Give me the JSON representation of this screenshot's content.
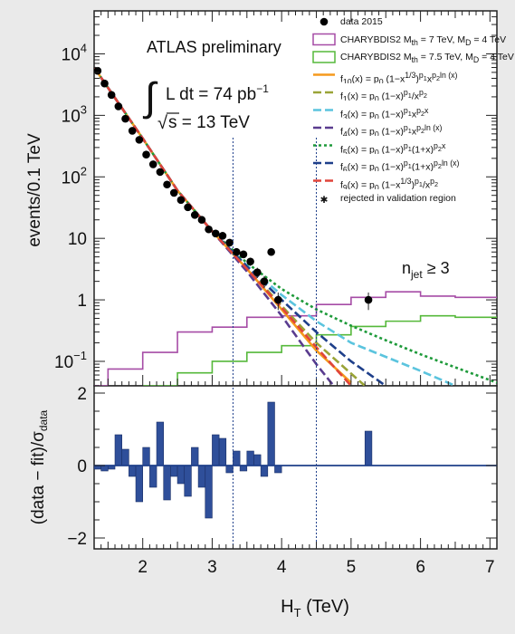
{
  "chart_data": [
    {
      "type": "scatter",
      "panel": "main",
      "xlabel": "H_T (TeV)",
      "ylabel": "events/0.1 TeV",
      "xlim": [
        1.3,
        7.1
      ],
      "ylim": [
        0.04,
        50000
      ],
      "yscale": "log",
      "x_ticks": [
        "2",
        "3",
        "4",
        "5",
        "6",
        "7"
      ],
      "y_ticks": [
        {
          "v": 0.1,
          "base": "10",
          "exp": "−1"
        },
        {
          "v": 1,
          "base": "1",
          "exp": ""
        },
        {
          "v": 10,
          "base": "10",
          "exp": ""
        },
        {
          "v": 100,
          "base": "10",
          "exp": "2"
        },
        {
          "v": 1000,
          "base": "10",
          "exp": "3"
        },
        {
          "v": 10000,
          "base": "10",
          "exp": "4"
        }
      ],
      "labels": {
        "experiment": "ATLAS preliminary",
        "lumi_integral": "L dt = 74 pb",
        "lumi_exp": "−1",
        "energy": "s = 13 TeV",
        "njet": "n",
        "njet_sub": "jet",
        "njet_cut": " ≥ 3"
      },
      "vlines": [
        3.3,
        4.5
      ],
      "data_points": [
        {
          "x": 1.35,
          "y": 5300
        },
        {
          "x": 1.45,
          "y": 3300
        },
        {
          "x": 1.55,
          "y": 2150
        },
        {
          "x": 1.65,
          "y": 1400
        },
        {
          "x": 1.75,
          "y": 880
        },
        {
          "x": 1.85,
          "y": 560
        },
        {
          "x": 1.95,
          "y": 400
        },
        {
          "x": 2.05,
          "y": 230
        },
        {
          "x": 2.15,
          "y": 160
        },
        {
          "x": 2.25,
          "y": 120
        },
        {
          "x": 2.35,
          "y": 75
        },
        {
          "x": 2.45,
          "y": 55
        },
        {
          "x": 2.55,
          "y": 42
        },
        {
          "x": 2.65,
          "y": 32
        },
        {
          "x": 2.75,
          "y": 24
        },
        {
          "x": 2.85,
          "y": 20
        },
        {
          "x": 2.95,
          "y": 14
        },
        {
          "x": 3.05,
          "y": 12
        },
        {
          "x": 3.15,
          "y": 11
        },
        {
          "x": 3.25,
          "y": 8.5
        },
        {
          "x": 3.35,
          "y": 6
        },
        {
          "x": 3.45,
          "y": 5.5
        },
        {
          "x": 3.55,
          "y": 4.2
        },
        {
          "x": 3.65,
          "y": 2.8
        },
        {
          "x": 3.75,
          "y": 2.0
        },
        {
          "x": 3.85,
          "y": 6.0
        },
        {
          "x": 3.95,
          "y": 1.0
        },
        {
          "x": 5.25,
          "y": 1.0
        }
      ],
      "legend": [
        {
          "name": "data 2015",
          "kind": "marker",
          "color": "#000000"
        },
        {
          "name": "CHARYBDIS2 M<sub>th</sub> = 7 TeV, M<sub>D</sub> = 4 TeV",
          "kind": "box",
          "color": "#a64ca6"
        },
        {
          "name": "CHARYBDIS2 M<sub>th</sub> = 7.5 TeV, M<sub>D</sub> = 4 TeV",
          "kind": "box",
          "color": "#55b83a"
        },
        {
          "name": "f<sub>10</sub>(x) = p<sub>0</sub> (1−x<sup>1/3</sup>)<sup>p<sub>1</sub></sup>x<sup>p<sub>2</sub>ln (x)</sup>",
          "kind": "line",
          "color": "#f59a1d",
          "dash": ""
        },
        {
          "name": "f<sub>1</sub>(x) = p<sub>0</sub> (1−x)<sup>p<sub>1</sub></sup>/x<sup>p<sub>2</sub></sup>",
          "kind": "line",
          "color": "#9aa437",
          "dash": "9,4"
        },
        {
          "name": "f<sub>3</sub>(x) = p<sub>0</sub> (1−x)<sup>p<sub>1</sub></sup>x<sup>p<sub>2</sub>x</sup>",
          "kind": "line",
          "color": "#5bc4de",
          "dash": "9,4"
        },
        {
          "name": "f<sub>4</sub>(x) = p<sub>0</sub> (1−x)<sup>p<sub>1</sub></sup>x<sup>p<sub>2</sub>ln (x)</sup>",
          "kind": "line",
          "color": "#5a3c8f",
          "dash": "9,4"
        },
        {
          "name": "f<sub>5</sub>(x) = p<sub>0</sub> (1−x)<sup>p<sub>1</sub></sup>(1+x)<sup>p<sub>2</sub>x</sup>",
          "kind": "line",
          "color": "#1e9a3a",
          "dash": "3,3"
        },
        {
          "name": "f<sub>6</sub>(x) = p<sub>0</sub> (1−x)<sup>p<sub>1</sub></sup>(1+x)<sup>p<sub>2</sub>ln (x)</sup>",
          "kind": "line",
          "color": "#1e3f8a",
          "dash": "9,4"
        },
        {
          "name": "f<sub>9</sub>(x) = p<sub>0</sub> (1−x<sup>1/3</sup>)<sup>p<sub>1</sub></sup>/x<sup>p<sub>2</sub></sup>",
          "kind": "line",
          "color": "#e0443a",
          "dash": "9,4"
        },
        {
          "name": "rejected in validation region",
          "kind": "star",
          "color": "#000000"
        }
      ],
      "series": [
        {
          "color": "#f59a1d",
          "dash": "",
          "points": [
            [
              1.3,
              6000
            ],
            [
              2,
              420
            ],
            [
              2.5,
              60
            ],
            [
              3,
              13
            ],
            [
              3.5,
              3.2
            ],
            [
              4,
              0.7
            ],
            [
              4.5,
              0.15
            ],
            [
              5,
              0.045
            ]
          ]
        },
        {
          "color": "#9aa437",
          "dash": "9,4",
          "points": [
            [
              1.3,
              6000
            ],
            [
              2,
              420
            ],
            [
              2.5,
              60
            ],
            [
              3,
              13
            ],
            [
              3.5,
              3.3
            ],
            [
              4,
              0.8
            ],
            [
              4.5,
              0.2
            ],
            [
              5.2,
              0.04
            ]
          ]
        },
        {
          "color": "#5bc4de",
          "dash": "9,4",
          "points": [
            [
              1.3,
              6000
            ],
            [
              2,
              420
            ],
            [
              2.5,
              60
            ],
            [
              3,
              13
            ],
            [
              3.5,
              3.6
            ],
            [
              4,
              1.2
            ],
            [
              4.5,
              0.45
            ],
            [
              5,
              0.2
            ],
            [
              6,
              0.07
            ],
            [
              6.5,
              0.04
            ]
          ]
        },
        {
          "color": "#5a3c8f",
          "dash": "9,4",
          "points": [
            [
              1.3,
              6000
            ],
            [
              2,
              420
            ],
            [
              2.5,
              60
            ],
            [
              3,
              13
            ],
            [
              3.5,
              2.9
            ],
            [
              4,
              0.55
            ],
            [
              4.5,
              0.09
            ],
            [
              4.75,
              0.04
            ]
          ]
        },
        {
          "color": "#1e9a3a",
          "dash": "3,3",
          "points": [
            [
              1.3,
              6000
            ],
            [
              2,
              420
            ],
            [
              2.5,
              60
            ],
            [
              3,
              13
            ],
            [
              3.5,
              4.0
            ],
            [
              4,
              1.5
            ],
            [
              4.5,
              0.7
            ],
            [
              5,
              0.38
            ],
            [
              5.5,
              0.22
            ],
            [
              6,
              0.13
            ],
            [
              6.5,
              0.08
            ],
            [
              7.1,
              0.045
            ]
          ]
        },
        {
          "color": "#1e3f8a",
          "dash": "9,4",
          "points": [
            [
              1.3,
              6000
            ],
            [
              2,
              420
            ],
            [
              2.5,
              60
            ],
            [
              3,
              13
            ],
            [
              3.5,
              3.5
            ],
            [
              4,
              1.0
            ],
            [
              4.5,
              0.3
            ],
            [
              5,
              0.1
            ],
            [
              5.5,
              0.04
            ]
          ]
        },
        {
          "color": "#e0443a",
          "dash": "9,4",
          "points": [
            [
              1.3,
              6000
            ],
            [
              2,
              420
            ],
            [
              2.5,
              60
            ],
            [
              3,
              13
            ],
            [
              3.5,
              3.2
            ],
            [
              4,
              0.75
            ],
            [
              4.5,
              0.17
            ],
            [
              5,
              0.04
            ]
          ]
        }
      ],
      "histograms": [
        {
          "color": "#a64ca6",
          "edges": [
            1.3,
            1.5,
            2,
            2.5,
            3,
            3.5,
            4,
            4.5,
            5,
            5.5,
            6,
            6.5,
            7.1
          ],
          "values": [
            0.04,
            0.075,
            0.14,
            0.3,
            0.36,
            0.52,
            0.55,
            0.84,
            1.1,
            1.35,
            1.15,
            1.1
          ]
        },
        {
          "color": "#55b83a",
          "edges": [
            2,
            2.5,
            3,
            3.5,
            4,
            4.5,
            5,
            5.5,
            6,
            6.5,
            7.1
          ],
          "values": [
            0.04,
            0.065,
            0.1,
            0.14,
            0.18,
            0.27,
            0.37,
            0.45,
            0.55,
            0.52
          ]
        }
      ]
    },
    {
      "type": "bar",
      "panel": "ratio",
      "xlabel": "H_T (TeV)",
      "ylabel": "(data − fit)/σ_data",
      "xlim": [
        1.3,
        7.1
      ],
      "ylim": [
        -2.3,
        2.2
      ],
      "y_ticks": [
        "−2",
        "0",
        "2"
      ],
      "bins": [
        {
          "x": 1.35,
          "value": -0.1
        },
        {
          "x": 1.45,
          "value": -0.15
        },
        {
          "x": 1.55,
          "value": -0.1
        },
        {
          "x": 1.65,
          "value": 0.85
        },
        {
          "x": 1.75,
          "value": 0.45
        },
        {
          "x": 1.85,
          "value": -0.3
        },
        {
          "x": 1.95,
          "value": -1.0
        },
        {
          "x": 2.05,
          "value": 0.5
        },
        {
          "x": 2.15,
          "value": -0.6
        },
        {
          "x": 2.25,
          "value": 1.2
        },
        {
          "x": 2.35,
          "value": -0.95
        },
        {
          "x": 2.45,
          "value": -0.3
        },
        {
          "x": 2.55,
          "value": -0.5
        },
        {
          "x": 2.65,
          "value": -0.85
        },
        {
          "x": 2.75,
          "value": 0.5
        },
        {
          "x": 2.85,
          "value": -0.6
        },
        {
          "x": 2.95,
          "value": -1.45
        },
        {
          "x": 3.05,
          "value": 0.85
        },
        {
          "x": 3.15,
          "value": 0.75
        },
        {
          "x": 3.25,
          "value": -0.2
        },
        {
          "x": 3.35,
          "value": 0.4
        },
        {
          "x": 3.45,
          "value": -0.15
        },
        {
          "x": 3.55,
          "value": 0.4
        },
        {
          "x": 3.65,
          "value": 0.3
        },
        {
          "x": 3.75,
          "value": -0.3
        },
        {
          "x": 3.85,
          "value": 1.75
        },
        {
          "x": 3.95,
          "value": -0.2
        },
        {
          "x": 5.25,
          "value": 0.95
        }
      ]
    }
  ]
}
